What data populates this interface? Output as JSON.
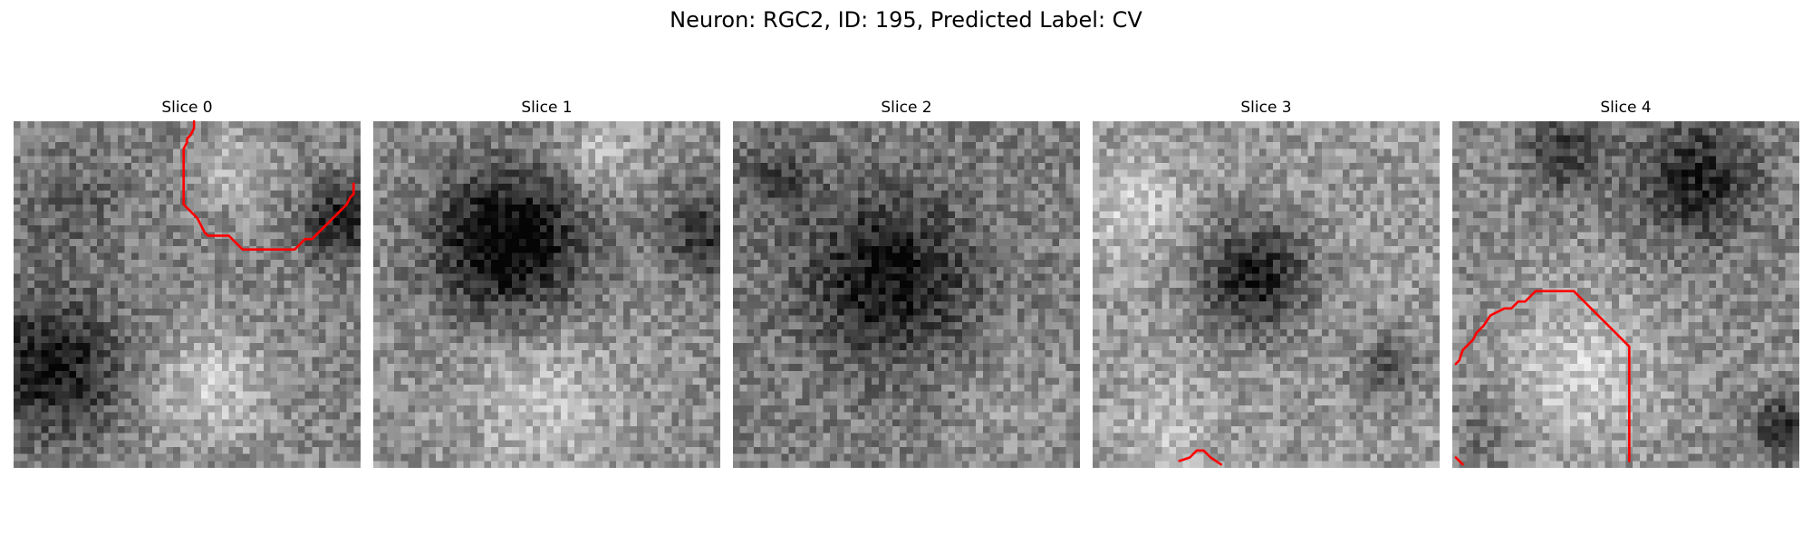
{
  "figure": {
    "title": "Neuron: RGC2, ID: 195, Predicted Label: CV"
  },
  "contour_color": "#ff0000",
  "slices": [
    {
      "title": "Slice 0",
      "mean_intensity": 0.52,
      "contours": [
        [
          [
            26,
            0
          ],
          [
            26,
            1
          ],
          [
            25.5,
            2
          ],
          [
            25,
            2.5
          ],
          [
            25,
            3
          ],
          [
            24.5,
            4
          ],
          [
            24.5,
            12
          ],
          [
            25.5,
            13
          ],
          [
            26.5,
            14
          ],
          [
            27,
            15
          ],
          [
            27.5,
            16
          ],
          [
            28,
            16.5
          ],
          [
            31,
            16.5
          ],
          [
            32,
            17.5
          ],
          [
            33,
            18.5
          ],
          [
            40.5,
            18.5
          ],
          [
            41.5,
            17.5
          ],
          [
            42,
            17
          ],
          [
            43,
            17
          ],
          [
            44.5,
            15.5
          ],
          [
            46,
            14
          ],
          [
            47,
            13
          ],
          [
            48,
            12
          ],
          [
            48.5,
            11
          ],
          [
            49,
            10.5
          ],
          [
            49,
            9
          ]
        ]
      ]
    },
    {
      "title": "Slice 1",
      "mean_intensity": 0.55,
      "contours": []
    },
    {
      "title": "Slice 2",
      "mean_intensity": 0.5,
      "contours": []
    },
    {
      "title": "Slice 3",
      "mean_intensity": 0.6,
      "contours": [
        [
          [
            12.5,
            49
          ],
          [
            14,
            48.5
          ],
          [
            15,
            47.5
          ],
          [
            16,
            47.5
          ],
          [
            17,
            48.5
          ],
          [
            18.5,
            49.5
          ]
        ]
      ]
    },
    {
      "title": "Slice 4",
      "mean_intensity": 0.54,
      "contours": [
        [
          [
            0.5,
            35
          ],
          [
            1,
            34.5
          ],
          [
            1.5,
            33
          ],
          [
            2,
            32.5
          ],
          [
            2.5,
            32
          ],
          [
            3,
            31.5
          ],
          [
            3.5,
            30.5
          ],
          [
            4.5,
            29.5
          ],
          [
            5.5,
            28
          ],
          [
            6.5,
            27.5
          ],
          [
            7.5,
            27
          ],
          [
            8.5,
            27
          ],
          [
            9.5,
            26
          ],
          [
            10.5,
            26
          ],
          [
            11.5,
            25
          ],
          [
            12,
            24.5
          ],
          [
            17.5,
            24.5
          ],
          [
            18.5,
            25.5
          ],
          [
            19.5,
            26.5
          ],
          [
            20.5,
            27.5
          ],
          [
            21.5,
            28.5
          ],
          [
            22.5,
            29.5
          ],
          [
            23.5,
            30.5
          ],
          [
            24.5,
            31.5
          ],
          [
            25.5,
            32.5
          ],
          [
            25.5,
            49
          ]
        ],
        [
          [
            0.5,
            48.5
          ],
          [
            1.5,
            49.5
          ]
        ]
      ]
    }
  ]
}
